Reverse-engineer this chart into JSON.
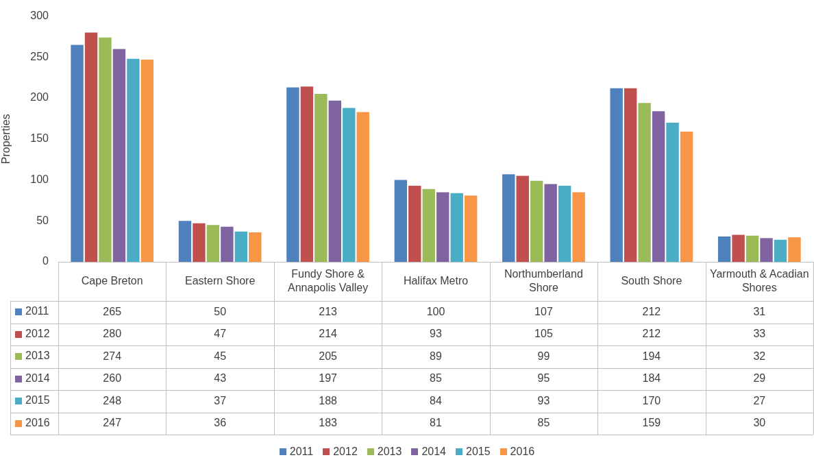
{
  "chart_data": {
    "type": "bar",
    "ylabel": "Properties",
    "categories": [
      "Cape Breton",
      "Eastern Shore",
      "Fundy Shore & Annapolis Valley",
      "Halifax Metro",
      "Northumberland Shore",
      "South Shore",
      "Yarmouth & Acadian Shores"
    ],
    "series": [
      {
        "name": "2011",
        "color": "#4f81bd",
        "values": [
          265,
          50,
          213,
          100,
          107,
          212,
          31
        ]
      },
      {
        "name": "2012",
        "color": "#c0504d",
        "values": [
          280,
          47,
          214,
          93,
          105,
          212,
          33
        ]
      },
      {
        "name": "2013",
        "color": "#9bbb59",
        "values": [
          274,
          45,
          205,
          89,
          99,
          194,
          32
        ]
      },
      {
        "name": "2014",
        "color": "#8064a2",
        "values": [
          260,
          43,
          197,
          85,
          95,
          184,
          29
        ]
      },
      {
        "name": "2015",
        "color": "#4bacc6",
        "values": [
          248,
          37,
          188,
          84,
          93,
          170,
          27
        ]
      },
      {
        "name": "2016",
        "color": "#f79646",
        "values": [
          247,
          36,
          183,
          81,
          85,
          159,
          30
        ]
      }
    ],
    "ylim": [
      0,
      300
    ],
    "yticks": [
      0,
      50,
      100,
      150,
      200,
      250,
      300
    ],
    "grid": false,
    "legend": "bottom",
    "data_labels": true
  }
}
